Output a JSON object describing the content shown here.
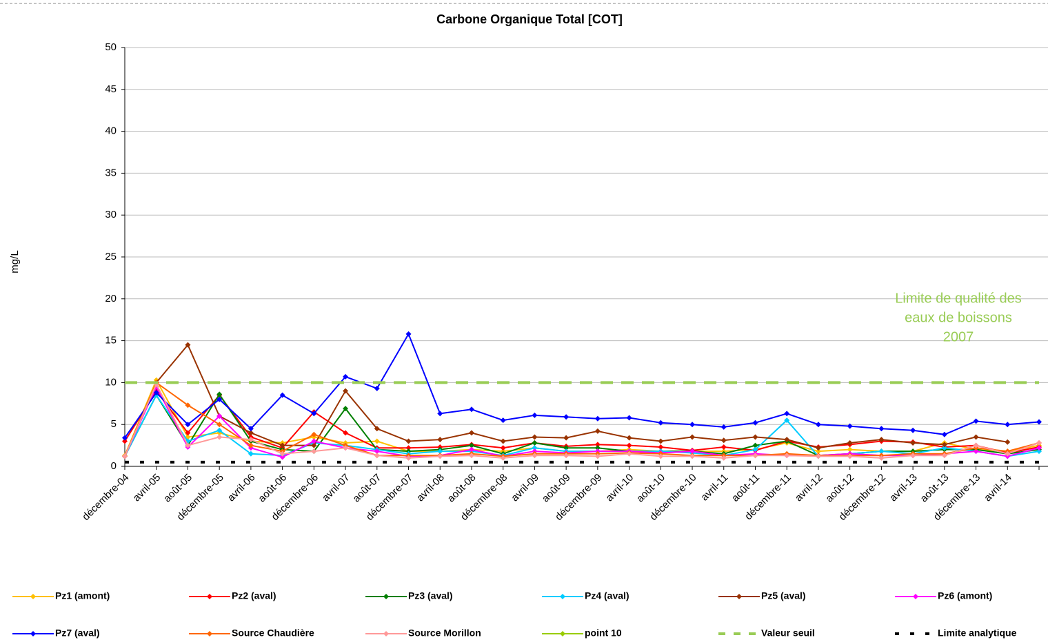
{
  "chart_data": {
    "type": "line",
    "title": "Carbone Organique Total [COT]",
    "y_label": "mg/L",
    "categories": [
      "décembre-04",
      "avril-05",
      "août-05",
      "décembre-05",
      "avril-06",
      "août-06",
      "décembre-06",
      "avril-07",
      "août-07",
      "décembre-07",
      "avril-08",
      "août-08",
      "décembre-08",
      "avril-09",
      "août-09",
      "décembre-09",
      "avril-10",
      "août-10",
      "décembre-10",
      "avril-11",
      "août-11",
      "décembre-11",
      "avril-12",
      "août-12",
      "décembre-12",
      "avril-13",
      "août-13",
      "décembre-13",
      "avril-14",
      null
    ],
    "ylim": [
      0,
      50
    ],
    "yticks": [
      0,
      5,
      10,
      15,
      20,
      25,
      30,
      35,
      40,
      45,
      50
    ],
    "grid": true,
    "annotation": [
      "Limite de qualité des",
      "eaux de boissons",
      "2007"
    ],
    "annotation_color": "#99cc55",
    "series": [
      {
        "name": "Pz1 (amont)",
        "color": "#ffc000",
        "values": [
          1.3,
          10.3,
          3.5,
          4,
          3,
          2.8,
          3.5,
          2.8,
          3,
          1.8,
          1.8,
          2,
          1.8,
          2.2,
          1.8,
          1.8,
          2,
          1.8,
          1.8,
          1.8,
          2,
          2.8,
          1.8,
          2,
          1.8,
          1.8,
          2.8,
          2,
          1.8,
          2.5
        ]
      },
      {
        "name": "Pz2 (aval)",
        "color": "#ff0000",
        "values": [
          3,
          9,
          4,
          8.5,
          3.5,
          2.2,
          6.5,
          4,
          2.2,
          2.2,
          2.3,
          2.6,
          2.2,
          2.8,
          2.4,
          2.6,
          2.5,
          2.3,
          1.9,
          2.3,
          1.9,
          3,
          2.3,
          2.6,
          3,
          2.9,
          2.3,
          2.5,
          1.6,
          2.3
        ]
      },
      {
        "name": "Pz3 (aval)",
        "color": "#008000",
        "values": [
          1.2,
          8.5,
          2.5,
          8.6,
          3,
          2,
          1.8,
          6.9,
          2,
          1.8,
          2,
          2.5,
          1.5,
          2.8,
          2.2,
          2.2,
          1.8,
          1.8,
          1.8,
          1.5,
          2.5,
          3,
          1.3,
          1.5,
          1.8,
          1.8,
          2,
          2,
          1.5,
          2
        ]
      },
      {
        "name": "Pz4 (aval)",
        "color": "#00ccff",
        "values": [
          1.2,
          8.5,
          3,
          4.3,
          1.5,
          1.3,
          2.8,
          2.5,
          2,
          1.5,
          1.8,
          1.8,
          1.3,
          2.2,
          1.8,
          1.8,
          1.8,
          1.8,
          1.6,
          1.3,
          2,
          5.5,
          1.2,
          1.5,
          1.8,
          1.5,
          2.2,
          1.8,
          1.2,
          1.8
        ]
      },
      {
        "name": "Pz5 (aval)",
        "color": "#993300",
        "values": [
          1.2,
          10,
          14.5,
          6,
          4,
          2.5,
          2.5,
          9,
          4.5,
          3,
          3.2,
          4,
          3,
          3.5,
          3.4,
          4.2,
          3.4,
          3,
          3.5,
          3.1,
          3.5,
          3.2,
          2.2,
          2.8,
          3.2,
          2.8,
          2.6,
          3.5,
          2.9,
          null
        ]
      },
      {
        "name": "Pz6 (amont)",
        "color": "#ff00ff",
        "values": [
          1.2,
          9.5,
          2.3,
          6,
          2.2,
          1.1,
          3,
          2.2,
          1.8,
          1.2,
          1.3,
          2,
          1.2,
          1.8,
          1.6,
          1.8,
          1.8,
          1.6,
          1.8,
          1.3,
          1.5,
          1.3,
          1.3,
          1.5,
          1.3,
          1.3,
          1.5,
          1.8,
          1.2,
          2.2
        ]
      },
      {
        "name": "Pz7 (aval)",
        "color": "#0000ff",
        "values": [
          3.4,
          8.8,
          5,
          8,
          4.5,
          8.5,
          6.3,
          10.7,
          9.3,
          15.8,
          6.3,
          6.8,
          5.5,
          6.1,
          5.9,
          5.7,
          5.8,
          5.2,
          5,
          4.7,
          5.2,
          6.3,
          5,
          4.8,
          4.5,
          4.3,
          3.8,
          5.4,
          5,
          5.3
        ]
      },
      {
        "name": "Source Chaudière",
        "color": "#ff6600",
        "values": [
          1.2,
          10,
          7.3,
          5,
          2.5,
          1.8,
          3.8,
          2.5,
          1.3,
          1.3,
          1.3,
          1.5,
          1.2,
          1.5,
          1.5,
          1.5,
          1.6,
          1.5,
          1.3,
          1.3,
          1.3,
          1.5,
          1.3,
          1.3,
          1.3,
          1.5,
          1.5,
          2.2,
          1.8,
          2.8
        ]
      },
      {
        "name": "Source Morillon",
        "color": "#ff9999",
        "values": [
          1.2,
          9.8,
          2.5,
          3.5,
          3.2,
          1.5,
          1.8,
          2.2,
          1.3,
          1,
          1.2,
          1.3,
          1,
          1.3,
          1.3,
          1.2,
          1.5,
          1.2,
          1.2,
          1,
          1.3,
          1.3,
          1.2,
          1.2,
          1,
          1.3,
          1.3,
          2.5,
          1.5,
          2.8
        ]
      },
      {
        "name": "point 10",
        "color": "#99cc00",
        "values": [
          null,
          null,
          null,
          null,
          null,
          null,
          null,
          null,
          null,
          null,
          null,
          null,
          null,
          null,
          null,
          null,
          null,
          null,
          null,
          null,
          null,
          null,
          null,
          null,
          null,
          null,
          null,
          null,
          null,
          null
        ]
      },
      {
        "name": "Valeur seuil",
        "color": "#99cc55",
        "style": "dashed",
        "values": [
          10,
          10,
          10,
          10,
          10,
          10,
          10,
          10,
          10,
          10,
          10,
          10,
          10,
          10,
          10,
          10,
          10,
          10,
          10,
          10,
          10,
          10,
          10,
          10,
          10,
          10,
          10,
          10,
          10,
          10
        ]
      },
      {
        "name": "Limite analytique",
        "color": "#000000",
        "style": "dashed",
        "values": [
          0.5,
          0.5,
          0.5,
          0.5,
          0.5,
          0.5,
          0.5,
          0.5,
          0.5,
          0.5,
          0.5,
          0.5,
          0.5,
          0.5,
          0.5,
          0.5,
          0.5,
          0.5,
          0.5,
          0.5,
          0.5,
          0.5,
          0.5,
          0.5,
          0.5,
          0.5,
          0.5,
          0.5,
          0.5,
          0.5
        ]
      }
    ]
  }
}
